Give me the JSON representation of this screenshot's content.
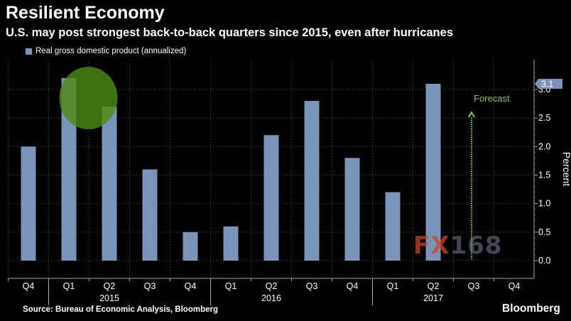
{
  "header": {
    "title": "Resilient Economy",
    "subtitle": "U.S. may post strongest back-to-back quarters since 2015, even after hurricanes"
  },
  "footer": {
    "source": "Source: Bureau of Economic Analysis, Bloomberg",
    "brand": "Bloomberg"
  },
  "watermark": {
    "fx": "FX",
    "num": "168"
  },
  "colors": {
    "bar": "#7b93b9",
    "forecast": "#8ac43f",
    "highlight": "#4e8a12",
    "background": "#000000"
  },
  "chart_data": {
    "type": "bar",
    "legend": "Real gross domestic product (annualized)",
    "categories": [
      "Q4",
      "Q1",
      "Q2",
      "Q3",
      "Q4",
      "Q1",
      "Q2",
      "Q3",
      "Q4",
      "Q1",
      "Q2",
      "Q3",
      "Q4"
    ],
    "values": [
      2.0,
      3.2,
      2.7,
      1.6,
      0.5,
      0.6,
      2.2,
      2.8,
      1.8,
      1.2,
      3.1,
      null,
      null
    ],
    "years": [
      {
        "label": "2015",
        "category_index": 2
      },
      {
        "label": "2016",
        "category_index": 6
      },
      {
        "label": "2017",
        "category_index": 10
      }
    ],
    "year_separators_after_index": [
      0,
      4,
      8
    ],
    "ylabel": "Percent",
    "ylim": [
      -0.1,
      3.5
    ],
    "yticks": [
      0.0,
      0.5,
      1.0,
      1.5,
      2.0,
      2.5,
      3.0
    ],
    "ytick_labels": [
      "0.0",
      "0.5",
      "1.0",
      "1.5",
      "2.0",
      "2.5",
      "3.0"
    ],
    "last_value_label": "3.1",
    "last_value": 3.1,
    "forecast": {
      "label": "Forecast",
      "category_index": 11,
      "value": 2.6
    },
    "highlight": {
      "category_start": 1,
      "category_end": 2,
      "value": 2.85
    }
  }
}
